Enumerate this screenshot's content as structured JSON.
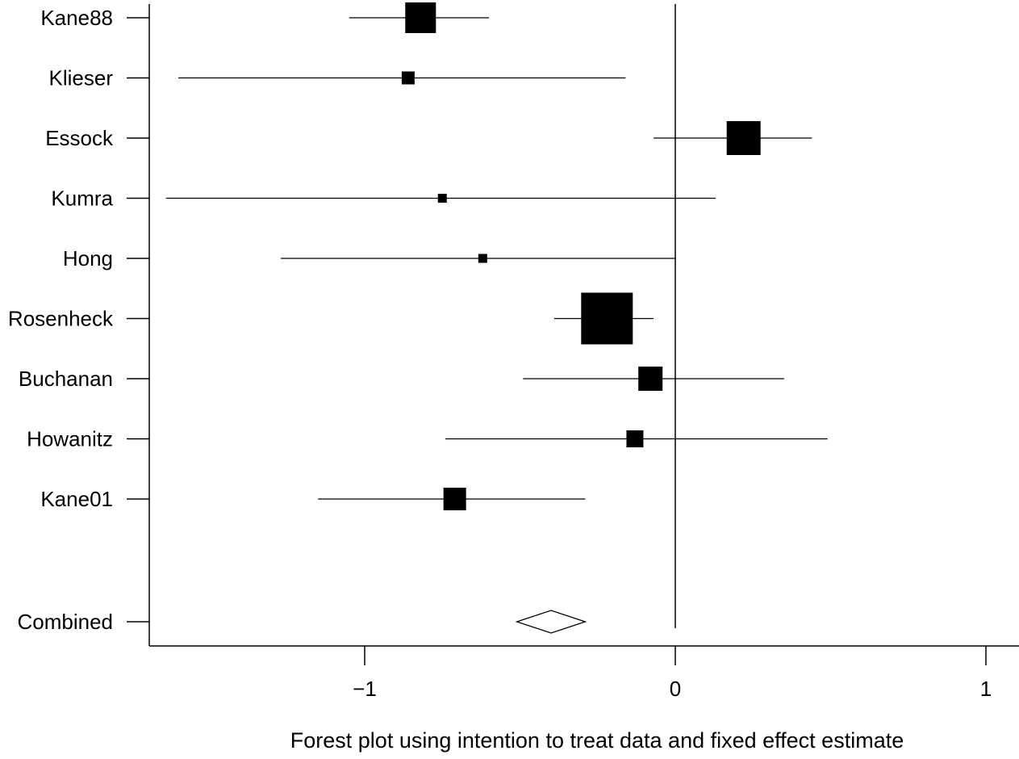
{
  "chart_data": {
    "type": "forest",
    "xlabel": "Forest plot using intention to treat data and fixed effect estimate",
    "xlim": [
      -1.67,
      1.1
    ],
    "xticks": [
      {
        "value": -1,
        "label": "−1"
      },
      {
        "value": 0,
        "label": "0"
      },
      {
        "value": 1,
        "label": "1"
      }
    ],
    "reference_line": 0,
    "studies": [
      {
        "name": "Kane88",
        "estimate": -0.82,
        "lower": -1.05,
        "upper": -0.6,
        "weight": 38
      },
      {
        "name": "Klieser",
        "estimate": -0.86,
        "lower": -1.6,
        "upper": -0.16,
        "weight": 16
      },
      {
        "name": "Essock",
        "estimate": 0.22,
        "lower": -0.07,
        "upper": 0.44,
        "weight": 42
      },
      {
        "name": "Kumra",
        "estimate": -0.75,
        "lower": -1.64,
        "upper": 0.13,
        "weight": 11
      },
      {
        "name": "Hong",
        "estimate": -0.62,
        "lower": -1.27,
        "upper": 0.0,
        "weight": 11
      },
      {
        "name": "Rosenheck",
        "estimate": -0.22,
        "lower": -0.39,
        "upper": -0.07,
        "weight": 64
      },
      {
        "name": "Buchanan",
        "estimate": -0.08,
        "lower": -0.49,
        "upper": 0.35,
        "weight": 30
      },
      {
        "name": "Howanitz",
        "estimate": -0.13,
        "lower": -0.74,
        "upper": 0.49,
        "weight": 21
      },
      {
        "name": "Kane01",
        "estimate": -0.71,
        "lower": -1.15,
        "upper": -0.29,
        "weight": 28
      }
    ],
    "combined": {
      "name": "Combined",
      "estimate": -0.4,
      "lower": -0.51,
      "upper": -0.29
    }
  }
}
